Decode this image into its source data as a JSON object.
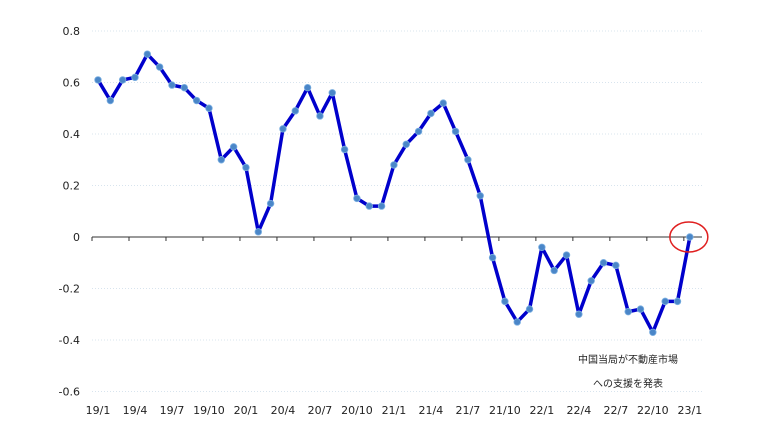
{
  "chart_data": {
    "type": "line",
    "title": "",
    "xlabel": "",
    "ylabel": "",
    "ylim": [
      -0.6,
      0.8
    ],
    "yticks": [
      "0.8",
      "0.6",
      "0.4",
      "0.2",
      "0",
      "-0.2",
      "-0.4",
      "-0.6"
    ],
    "ytick_values": [
      0.8,
      0.6,
      0.4,
      0.2,
      0,
      -0.2,
      -0.4,
      -0.6
    ],
    "xtick_labels": [
      "19/1",
      "19/4",
      "19/7",
      "19/10",
      "20/1",
      "20/4",
      "20/7",
      "20/10",
      "21/1",
      "21/4",
      "21/7",
      "21/10",
      "22/1",
      "22/4",
      "22/7",
      "22/10",
      "23/1"
    ],
    "grid": true,
    "series": [
      {
        "name": "",
        "color": "#0000cc",
        "marker_color": "#4a86c8",
        "values": [
          0.61,
          0.53,
          0.61,
          0.62,
          0.71,
          0.66,
          0.59,
          0.58,
          0.53,
          0.5,
          0.3,
          0.35,
          0.27,
          0.02,
          0.13,
          0.42,
          0.49,
          0.58,
          0.47,
          0.56,
          0.34,
          0.15,
          0.12,
          0.12,
          0.28,
          0.36,
          0.41,
          0.48,
          0.52,
          0.41,
          0.3,
          0.16,
          -0.08,
          -0.25,
          -0.33,
          -0.28,
          -0.04,
          -0.13,
          -0.07,
          -0.3,
          -0.17,
          -0.1,
          -0.11,
          -0.29,
          -0.28,
          -0.37,
          -0.25,
          -0.25,
          0.0
        ]
      }
    ],
    "annotation": {
      "lines": [
        "中国当局が不動産市場",
        "への支援を発表"
      ],
      "highlight_color": "#e02020",
      "highlight_index": 48
    }
  }
}
